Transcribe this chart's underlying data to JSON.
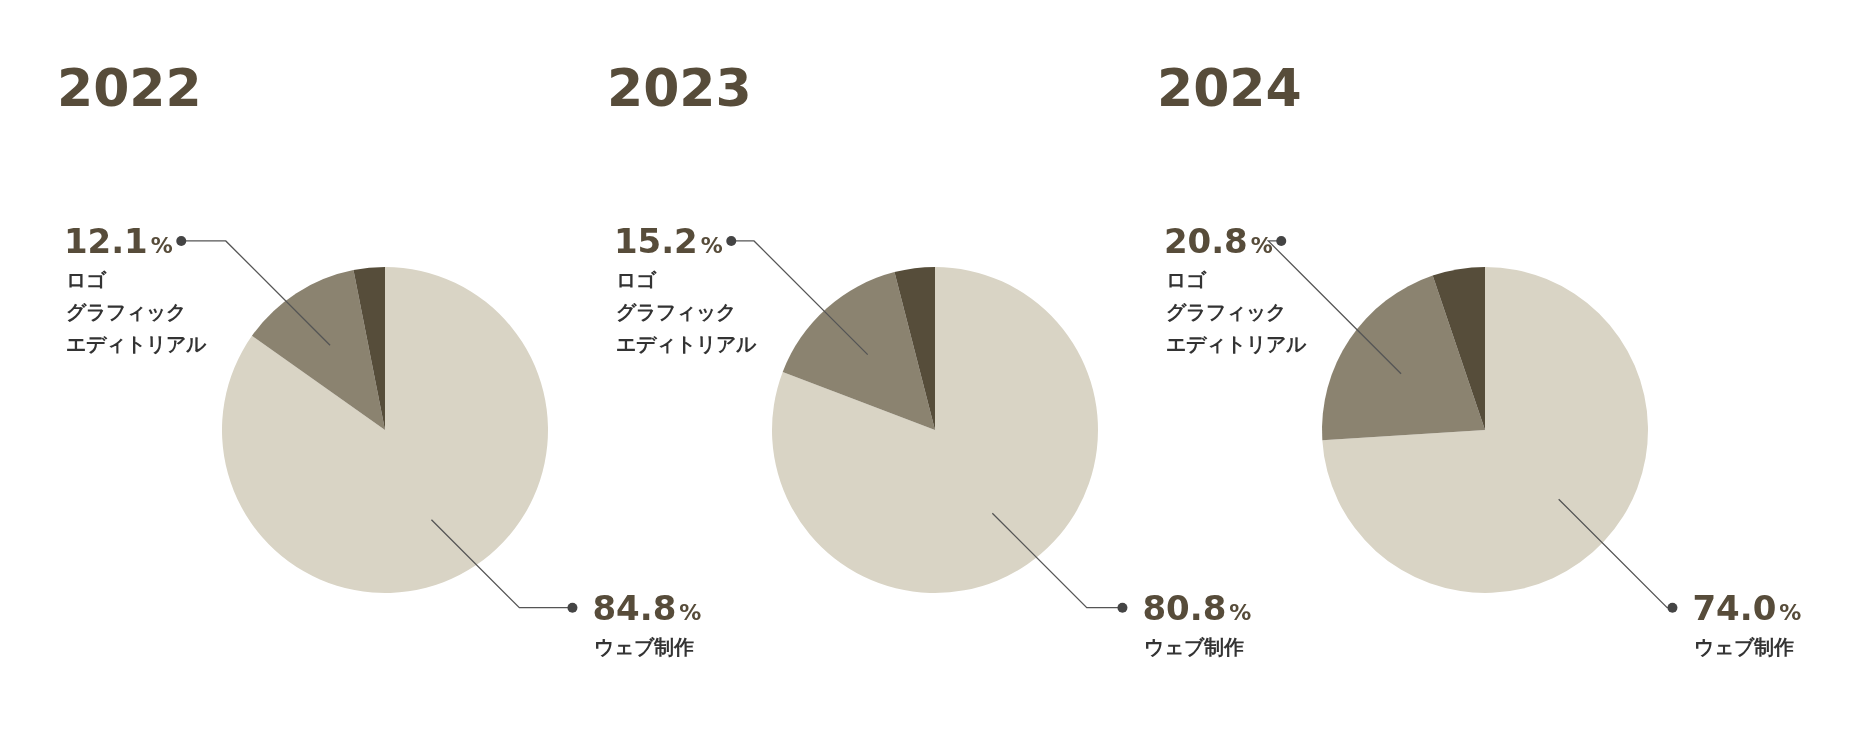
{
  "chart_data": [
    {
      "type": "pie",
      "title": "2022",
      "categories": [
        "ウェブ制作",
        "ロゴグラフィックエディトリアル",
        null
      ],
      "values": [
        84.8,
        12.1,
        3.1
      ],
      "colors": [
        "#d9d4c5",
        "#8b8370",
        "#564d3a"
      ],
      "value_labels": [
        "84.8%",
        "12.1%",
        null
      ]
    },
    {
      "type": "pie",
      "title": "2023",
      "categories": [
        "ウェブ制作",
        "ロゴグラフィックエディトリアル",
        null
      ],
      "values": [
        80.8,
        15.2,
        4.0
      ],
      "colors": [
        "#d9d4c5",
        "#8b8370",
        "#564d3a"
      ],
      "value_labels": [
        "80.8%",
        "15.2%",
        null
      ]
    },
    {
      "type": "pie",
      "title": "2024",
      "categories": [
        "ウェブ制作",
        "ロゴグラフィックエディトリアル",
        null
      ],
      "values": [
        74.0,
        20.8,
        5.2
      ],
      "colors": [
        "#d9d4c5",
        "#8b8370",
        "#564d3a"
      ],
      "value_labels": [
        "74.0%",
        "20.8%",
        null
      ]
    }
  ]
}
